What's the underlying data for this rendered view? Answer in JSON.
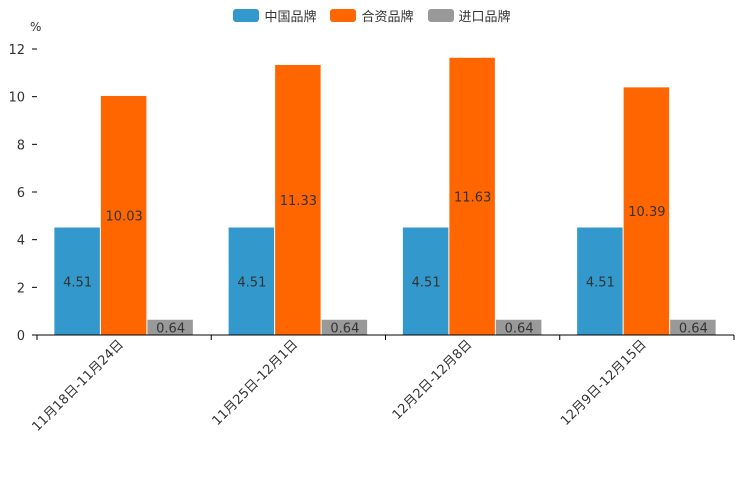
{
  "chart_data": {
    "type": "bar",
    "title": "",
    "ylabel": "%",
    "xlabel": "",
    "ylim": [
      0,
      12
    ],
    "yticks": [
      0,
      2,
      4,
      6,
      8,
      10,
      12
    ],
    "categories": [
      "11月18日-11月24日",
      "11月25日-12月1日",
      "12月2日-12月8日",
      "12月9日-12月15日"
    ],
    "series": [
      {
        "name": "中国品牌",
        "color": "#3399cc",
        "values": [
          4.51,
          4.51,
          4.51,
          4.51
        ]
      },
      {
        "name": "合资品牌",
        "color": "#ff6600",
        "values": [
          10.03,
          11.33,
          11.63,
          10.39
        ]
      },
      {
        "name": "进口品牌",
        "color": "#999999",
        "values": [
          0.64,
          0.64,
          0.64,
          0.64
        ]
      }
    ],
    "legend_position": "top-center",
    "grid": false
  }
}
